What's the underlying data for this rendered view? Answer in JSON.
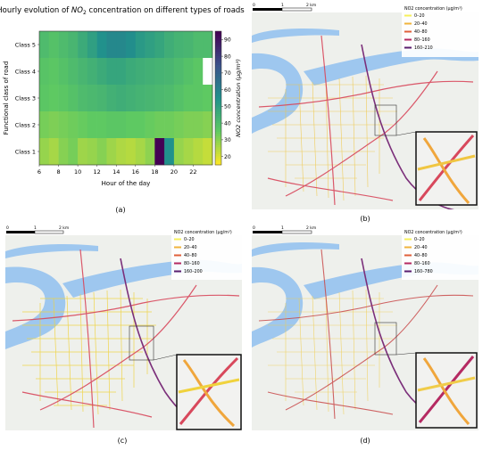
{
  "chart_data": {
    "type": "heatmap",
    "title_pre": "Hourly evolution of ",
    "title_no2": "NO",
    "title_sub": "2",
    "title_post": " concentration on different types of roads",
    "xlabel": "Hour of the day",
    "ylabel": "Functional class of road",
    "colorbar_label": "NO2 concentration (μg/m³)",
    "x_ticks": [
      "6",
      "8",
      "10",
      "12",
      "14",
      "16",
      "18",
      "20",
      "22"
    ],
    "hours": [
      6,
      7,
      8,
      9,
      10,
      11,
      12,
      13,
      14,
      15,
      16,
      17,
      18,
      19,
      20,
      21,
      22,
      23
    ],
    "categories": [
      "Class 5",
      "Class 4",
      "Class 3",
      "Class 2",
      "Class 1"
    ],
    "values": [
      [
        40,
        38,
        40,
        42,
        46,
        50,
        55,
        58,
        58,
        56,
        52,
        50,
        48,
        45,
        43,
        42,
        40,
        40
      ],
      [
        37,
        36,
        38,
        40,
        42,
        44,
        46,
        48,
        48,
        46,
        45,
        44,
        43,
        42,
        40,
        38,
        36,
        null
      ],
      [
        36,
        35,
        36,
        38,
        40,
        41,
        42,
        44,
        45,
        44,
        43,
        42,
        41,
        40,
        38,
        36,
        36,
        35
      ],
      [
        32,
        31,
        32,
        33,
        34,
        35,
        35,
        36,
        36,
        35,
        35,
        34,
        33,
        33,
        32,
        31,
        31,
        30
      ],
      [
        28,
        26,
        30,
        32,
        27,
        28,
        30,
        27,
        25,
        24,
        26,
        29,
        95,
        55,
        28,
        26,
        24,
        22
      ]
    ],
    "colorbar_ticks": [
      "20",
      "30",
      "40",
      "50",
      "60",
      "70",
      "80",
      "90"
    ],
    "vmin": 15,
    "vmax": 95,
    "colormap": "viridis_r"
  },
  "panel_labels": {
    "a": "(a)",
    "b": "(b)",
    "c": "(c)",
    "d": "(d)"
  },
  "maps": {
    "scale_zero": "0",
    "scale_one": "1",
    "scale_two": "2 km",
    "legend_title": "NO2 concentration (μg/m³)",
    "legend_colors": [
      "#f7f05a",
      "#f0b43c",
      "#e0603a",
      "#b52a62",
      "#5a1e6e"
    ],
    "b": {
      "legend": [
        "0–20",
        "20–40",
        "40–80",
        "80–160",
        "160–210"
      ]
    },
    "c": {
      "legend": [
        "0–20",
        "20–40",
        "40–80",
        "80–160",
        "160–200"
      ]
    },
    "d": {
      "legend": [
        "0–20",
        "20–40",
        "40–80",
        "80–160",
        "160–780"
      ]
    }
  }
}
